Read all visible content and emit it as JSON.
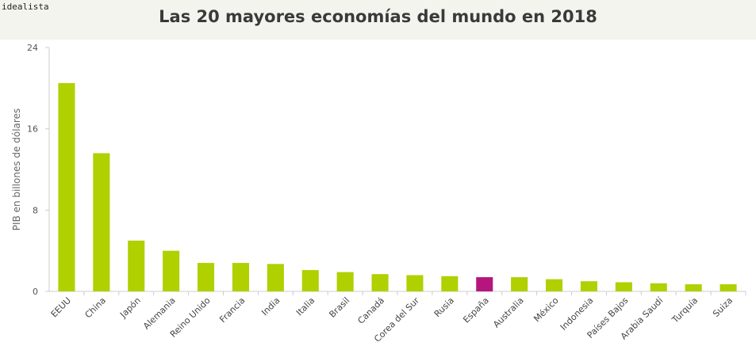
{
  "brand": "idealista",
  "chart_data": {
    "type": "bar",
    "title": "Las 20 mayores economías del mundo en 2018",
    "ylabel": "PIB en billones de dólares",
    "xlabel": "",
    "ylim": [
      0,
      24
    ],
    "yticks": [
      0,
      8,
      16,
      24
    ],
    "grid": false,
    "categories": [
      "EEUU",
      "China",
      "Japón",
      "Alemania",
      "Reino Unido",
      "Francia",
      "India",
      "Italia",
      "Brasil",
      "Canadá",
      "Corea del Sur",
      "Rusia",
      "España",
      "Australia",
      "México",
      "Indonesia",
      "Países Bajos",
      "Arabia Saudí",
      "Turquía",
      "Suiza"
    ],
    "values": [
      20.5,
      13.6,
      5.0,
      4.0,
      2.8,
      2.8,
      2.7,
      2.1,
      1.9,
      1.7,
      1.6,
      1.5,
      1.4,
      1.4,
      1.2,
      1.0,
      0.9,
      0.8,
      0.7,
      0.7
    ],
    "highlight_category": "España",
    "colors": {
      "bar": "#b0d000",
      "highlight": "#b5167e"
    }
  }
}
